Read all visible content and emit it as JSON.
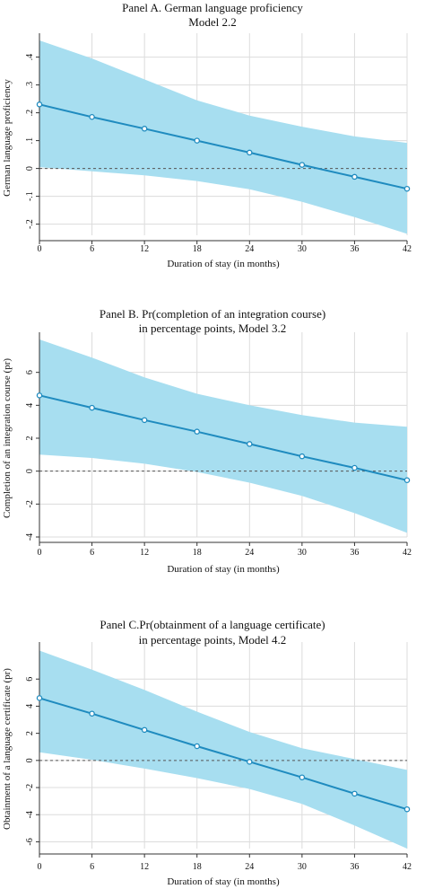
{
  "colors": {
    "band": "#a7def0",
    "line": "#1f8bbf",
    "marker": "#1f8bbf",
    "grid": "#dcdcdc",
    "zero": "#555555",
    "axis": "#333333"
  },
  "chart_data": [
    {
      "type": "line",
      "title": "Panel A. German language proficiency",
      "subtitle": "Model 2.2",
      "xlabel": "Duration of stay (in months)",
      "ylabel": "German language proficiency",
      "x": [
        0,
        6,
        12,
        18,
        24,
        30,
        36,
        42
      ],
      "x_tick_labels": [
        "0",
        "6",
        "12",
        "18",
        "24",
        "30",
        "36",
        "42"
      ],
      "y_ticks": [
        -0.2,
        -0.1,
        0,
        0.1,
        0.2,
        0.3,
        0.4
      ],
      "y_tick_labels": [
        "-.2",
        "-.1",
        "0",
        ".1",
        ".2",
        ".3",
        ".4"
      ],
      "ylim": [
        -0.24,
        0.46
      ],
      "xlim": [
        0,
        42
      ],
      "series": [
        {
          "values": [
            0.23,
            0.185,
            0.143,
            0.1,
            0.057,
            0.013,
            -0.03,
            -0.073
          ]
        }
      ],
      "ci_upper": [
        0.46,
        0.395,
        0.32,
        0.245,
        0.19,
        0.15,
        0.115,
        0.092
      ],
      "ci_lower": [
        0.005,
        -0.01,
        -0.025,
        -0.045,
        -0.075,
        -0.12,
        -0.175,
        -0.235
      ],
      "zero_line": true,
      "grid": true
    },
    {
      "type": "line",
      "title": "Panel B. Pr(completion of an integration course)",
      "subtitle": "in percentage points, Model 3.2",
      "xlabel": "Duration of stay (in months)",
      "ylabel": "Completion of an integration course (pr)",
      "x": [
        0,
        6,
        12,
        18,
        24,
        30,
        36,
        42
      ],
      "x_tick_labels": [
        "0",
        "6",
        "12",
        "18",
        "24",
        "30",
        "36",
        "42"
      ],
      "y_ticks": [
        -4,
        -2,
        0,
        2,
        4,
        6
      ],
      "y_tick_labels": [
        "-4",
        "-2",
        "0",
        "2",
        "4",
        "6"
      ],
      "ylim": [
        -4,
        8
      ],
      "xlim": [
        0,
        42
      ],
      "series": [
        {
          "values": [
            4.6,
            3.85,
            3.1,
            2.4,
            1.65,
            0.9,
            0.2,
            -0.55
          ]
        }
      ],
      "ci_upper": [
        8.0,
        6.9,
        5.7,
        4.7,
        4.0,
        3.4,
        2.95,
        2.7
      ],
      "ci_lower": [
        1.0,
        0.8,
        0.45,
        -0.05,
        -0.7,
        -1.5,
        -2.55,
        -3.75
      ],
      "zero_line": true,
      "grid": true
    },
    {
      "type": "line",
      "title": "Panel C.Pr(obtainment of a language certificate)",
      "subtitle": "in percentage points, Model 4.2",
      "xlabel": "Duration of stay (in months)",
      "ylabel": "Obtainment of a language certificate (pr)",
      "x": [
        0,
        6,
        12,
        18,
        24,
        30,
        36,
        42
      ],
      "x_tick_labels": [
        "0",
        "6",
        "12",
        "18",
        "24",
        "30",
        "36",
        "42"
      ],
      "y_ticks": [
        -6,
        -4,
        -2,
        0,
        2,
        4,
        6
      ],
      "y_tick_labels": [
        "-6",
        "-4",
        "-2",
        "0",
        "2",
        "4",
        "6"
      ],
      "ylim": [
        -6.5,
        8.2
      ],
      "xlim": [
        0,
        42
      ],
      "series": [
        {
          "values": [
            4.6,
            3.45,
            2.25,
            1.05,
            -0.1,
            -1.25,
            -2.45,
            -3.6
          ]
        }
      ],
      "ci_upper": [
        8.1,
        6.7,
        5.2,
        3.6,
        2.1,
        0.9,
        0.1,
        -0.7
      ],
      "ci_lower": [
        0.6,
        0.05,
        -0.6,
        -1.3,
        -2.1,
        -3.2,
        -4.8,
        -6.5
      ],
      "zero_line": true,
      "grid": true
    }
  ]
}
